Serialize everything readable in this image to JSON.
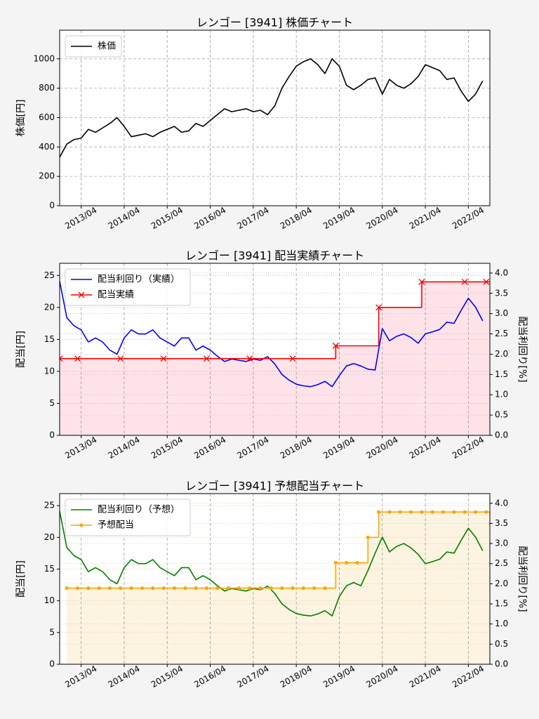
{
  "chart_data": [
    {
      "type": "line",
      "title": "レンゴー [3941]  株価チャート",
      "ylabel": "株価[円]",
      "xlim": [
        "2012/10",
        "2022/10"
      ],
      "xticks": [
        "2013/04",
        "2014/04",
        "2015/04",
        "2016/04",
        "2017/04",
        "2018/04",
        "2019/04",
        "2020/04",
        "2021/04",
        "2022/04"
      ],
      "ylim": [
        0,
        1195
      ],
      "yticks": [
        0,
        200,
        400,
        600,
        800,
        1000
      ],
      "grid": true,
      "legend": "upper left",
      "series": [
        {
          "name": "株価",
          "color": "#000000",
          "x": [
            "2012/10",
            "2012/12",
            "2013/02",
            "2013/04",
            "2013/06",
            "2013/08",
            "2013/10",
            "2013/12",
            "2014/02",
            "2014/04",
            "2014/06",
            "2014/08",
            "2014/10",
            "2014/12",
            "2015/02",
            "2015/04",
            "2015/06",
            "2015/08",
            "2015/10",
            "2015/12",
            "2016/02",
            "2016/04",
            "2016/06",
            "2016/08",
            "2016/10",
            "2016/12",
            "2017/02",
            "2017/04",
            "2017/06",
            "2017/08",
            "2017/10",
            "2017/12",
            "2018/02",
            "2018/04",
            "2018/06",
            "2018/08",
            "2018/10",
            "2018/12",
            "2019/02",
            "2019/04",
            "2019/06",
            "2019/08",
            "2019/10",
            "2019/12",
            "2020/02",
            "2020/04",
            "2020/06",
            "2020/08",
            "2020/10",
            "2020/12",
            "2021/02",
            "2021/04",
            "2021/06",
            "2021/08",
            "2021/10",
            "2021/12",
            "2022/02",
            "2022/04",
            "2022/06",
            "2022/08"
          ],
          "values": [
            330,
            420,
            450,
            460,
            520,
            500,
            530,
            560,
            600,
            540,
            470,
            480,
            490,
            470,
            500,
            520,
            540,
            500,
            510,
            560,
            540,
            580,
            620,
            660,
            640,
            650,
            660,
            640,
            650,
            620,
            680,
            800,
            880,
            950,
            980,
            1000,
            960,
            900,
            1000,
            950,
            820,
            790,
            820,
            860,
            870,
            760,
            860,
            820,
            800,
            830,
            880,
            960,
            940,
            920,
            860,
            870,
            780,
            710,
            760,
            850
          ]
        }
      ]
    },
    {
      "type": "line",
      "title": "レンゴー [3941]  配当実績チャート",
      "ylabel": "配当[円]",
      "y2label": "配当利回り[%]",
      "xlim": [
        "2012/10",
        "2022/10"
      ],
      "xticks": [
        "2013/04",
        "2014/04",
        "2015/04",
        "2016/04",
        "2017/04",
        "2018/04",
        "2019/04",
        "2020/04",
        "2021/04",
        "2022/04"
      ],
      "ylim": [
        0,
        26.9
      ],
      "yticks": [
        0,
        5,
        10,
        15,
        20,
        25
      ],
      "y2lim": [
        0,
        4.24
      ],
      "y2ticks": [
        {
          "value": 0,
          "label": "0.0"
        },
        0.5,
        {
          "value": 1,
          "label": "1.0"
        },
        1.5,
        {
          "value": 2,
          "label": "2.0"
        },
        2.5,
        {
          "value": 3,
          "label": "3.0"
        },
        3.5,
        {
          "value": 4,
          "label": "4.0"
        }
      ],
      "grid": true,
      "ygrid_color": "#f2a0a0",
      "y2grid_color": "#a0b8f0",
      "legend": "upper left",
      "fill": "#ffe3e8",
      "series": [
        {
          "name": "配当利回り（実績）",
          "color": "#0000ff",
          "axis": "y2",
          "x": [
            "2012/10",
            "2012/12",
            "2013/02",
            "2013/04",
            "2013/06",
            "2013/08",
            "2013/10",
            "2013/12",
            "2014/02",
            "2014/04",
            "2014/06",
            "2014/08",
            "2014/10",
            "2014/12",
            "2015/02",
            "2015/04",
            "2015/06",
            "2015/08",
            "2015/10",
            "2015/12",
            "2016/02",
            "2016/04",
            "2016/06",
            "2016/08",
            "2016/10",
            "2016/12",
            "2017/02",
            "2017/04",
            "2017/06",
            "2017/08",
            "2017/10",
            "2017/12",
            "2018/02",
            "2018/04",
            "2018/06",
            "2018/08",
            "2018/10",
            "2018/12",
            "2019/02",
            "2019/04",
            "2019/06",
            "2019/08",
            "2019/10",
            "2019/12",
            "2020/02",
            "2020/04",
            "2020/06",
            "2020/08",
            "2020/10",
            "2020/12",
            "2021/02",
            "2021/04",
            "2021/06",
            "2021/08",
            "2021/10",
            "2021/12",
            "2022/02",
            "2022/04",
            "2022/06",
            "2022/08"
          ],
          "values": [
            3.8,
            2.9,
            2.7,
            2.6,
            2.3,
            2.4,
            2.3,
            2.1,
            2.0,
            2.4,
            2.6,
            2.5,
            2.5,
            2.6,
            2.4,
            2.3,
            2.2,
            2.4,
            2.4,
            2.1,
            2.2,
            2.1,
            1.95,
            1.82,
            1.88,
            1.85,
            1.82,
            1.88,
            1.85,
            1.94,
            1.76,
            1.5,
            1.36,
            1.26,
            1.22,
            1.2,
            1.25,
            1.33,
            1.2,
            1.47,
            1.71,
            1.77,
            1.71,
            1.63,
            1.61,
            2.63,
            2.33,
            2.44,
            2.5,
            2.41,
            2.27,
            2.5,
            2.55,
            2.61,
            2.79,
            2.76,
            3.08,
            3.38,
            3.16,
            2.82
          ]
        },
        {
          "name": "配当実績",
          "color": "#ff0000",
          "step": true,
          "marker": "x",
          "x": [
            "2012/10",
            "2013/03",
            "2014/03",
            "2015/03",
            "2016/03",
            "2017/03",
            "2018/03",
            "2019/03",
            "2020/03",
            "2021/03",
            "2022/03",
            "2022/09"
          ],
          "values": [
            12,
            12,
            12,
            12,
            12,
            12,
            12,
            14,
            20,
            24,
            24,
            24
          ]
        }
      ]
    },
    {
      "type": "line",
      "title": "レンゴー [3941]  予想配当チャート",
      "ylabel": "配当[円]",
      "y2label": "配当利回り[%]",
      "xlim": [
        "2012/10",
        "2022/10"
      ],
      "xticks": [
        "2013/04",
        "2014/04",
        "2015/04",
        "2016/04",
        "2017/04",
        "2018/04",
        "2019/04",
        "2020/04",
        "2021/04",
        "2022/04"
      ],
      "ylim": [
        0,
        26.9
      ],
      "yticks": [
        0,
        5,
        10,
        15,
        20,
        25
      ],
      "y2lim": [
        0,
        4.24
      ],
      "y2ticks": [
        {
          "value": 0,
          "label": "0.0"
        },
        0.5,
        {
          "value": 1,
          "label": "1.0"
        },
        1.5,
        {
          "value": 2,
          "label": "2.0"
        },
        2.5,
        {
          "value": 3,
          "label": "3.0"
        },
        3.5,
        {
          "value": 4,
          "label": "4.0"
        }
      ],
      "grid": true,
      "ygrid_color": "#f5c880",
      "y2grid_color": "#a8e0a8",
      "legend": "upper left",
      "fill": "#fdf3e1",
      "series": [
        {
          "name": "配当利回り（予想）",
          "color": "#008000",
          "axis": "y2",
          "x": [
            "2012/10",
            "2012/12",
            "2013/02",
            "2013/04",
            "2013/06",
            "2013/08",
            "2013/10",
            "2013/12",
            "2014/02",
            "2014/04",
            "2014/06",
            "2014/08",
            "2014/10",
            "2014/12",
            "2015/02",
            "2015/04",
            "2015/06",
            "2015/08",
            "2015/10",
            "2015/12",
            "2016/02",
            "2016/04",
            "2016/06",
            "2016/08",
            "2016/10",
            "2016/12",
            "2017/02",
            "2017/04",
            "2017/06",
            "2017/08",
            "2017/10",
            "2017/12",
            "2018/02",
            "2018/04",
            "2018/06",
            "2018/08",
            "2018/10",
            "2018/12",
            "2019/02",
            "2019/04",
            "2019/06",
            "2019/08",
            "2019/10",
            "2019/12",
            "2020/02",
            "2020/04",
            "2020/06",
            "2020/08",
            "2020/10",
            "2020/12",
            "2021/02",
            "2021/04",
            "2021/06",
            "2021/08",
            "2021/10",
            "2021/12",
            "2022/02",
            "2022/04",
            "2022/06",
            "2022/08"
          ],
          "values": [
            3.8,
            2.9,
            2.7,
            2.6,
            2.3,
            2.4,
            2.3,
            2.1,
            2.0,
            2.4,
            2.6,
            2.5,
            2.5,
            2.6,
            2.4,
            2.3,
            2.2,
            2.4,
            2.4,
            2.1,
            2.2,
            2.1,
            1.95,
            1.82,
            1.88,
            1.85,
            1.82,
            1.88,
            1.85,
            1.94,
            1.76,
            1.5,
            1.36,
            1.26,
            1.22,
            1.2,
            1.25,
            1.33,
            1.2,
            1.68,
            1.95,
            2.03,
            1.95,
            2.33,
            2.76,
            3.16,
            2.79,
            2.93,
            3.0,
            2.89,
            2.73,
            2.5,
            2.55,
            2.61,
            2.79,
            2.76,
            3.08,
            3.38,
            3.16,
            2.82
          ]
        },
        {
          "name": "予想配当",
          "color": "#ffa500",
          "step": true,
          "marker": "o",
          "x": [
            "2012/12",
            "2013/03",
            "2013/06",
            "2013/09",
            "2013/12",
            "2014/03",
            "2014/06",
            "2014/09",
            "2014/12",
            "2015/03",
            "2015/06",
            "2015/09",
            "2015/12",
            "2016/03",
            "2016/06",
            "2016/09",
            "2016/12",
            "2017/03",
            "2017/06",
            "2017/09",
            "2017/12",
            "2018/03",
            "2018/06",
            "2018/09",
            "2018/12",
            "2019/03",
            "2019/06",
            "2019/09",
            "2019/12",
            "2020/03",
            "2020/06",
            "2020/09",
            "2020/12",
            "2021/03",
            "2021/06",
            "2021/09",
            "2021/12",
            "2022/03",
            "2022/06",
            "2022/09"
          ],
          "values": [
            12,
            12,
            12,
            12,
            12,
            12,
            12,
            12,
            12,
            12,
            12,
            12,
            12,
            12,
            12,
            12,
            12,
            12,
            12,
            12,
            12,
            12,
            12,
            12,
            12,
            16,
            16,
            16,
            20,
            24,
            24,
            24,
            24,
            24,
            24,
            24,
            24,
            24,
            24,
            24
          ]
        }
      ]
    }
  ]
}
